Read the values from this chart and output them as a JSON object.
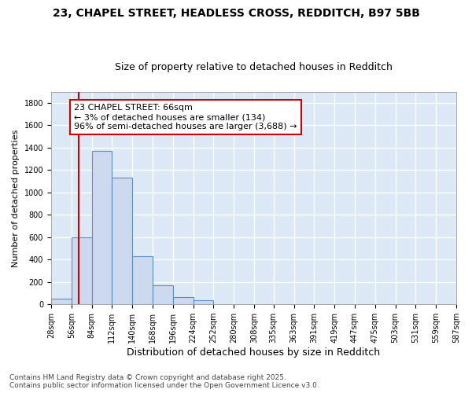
{
  "title1": "23, CHAPEL STREET, HEADLESS CROSS, REDDITCH, B97 5BB",
  "title2": "Size of property relative to detached houses in Redditch",
  "xlabel": "Distribution of detached houses by size in Redditch",
  "ylabel": "Number of detached properties",
  "bin_edges": [
    28,
    56,
    84,
    112,
    140,
    168,
    196,
    224,
    252,
    280,
    308,
    335,
    363,
    391,
    419,
    447,
    475,
    503,
    531,
    559,
    587
  ],
  "bar_heights": [
    50,
    600,
    1370,
    1130,
    430,
    170,
    65,
    35,
    5,
    5,
    5,
    5,
    0,
    0,
    0,
    0,
    0,
    0,
    0,
    0
  ],
  "bar_color": "#ccd9ee",
  "bar_edge_color": "#5b8ec4",
  "vline_x": 66,
  "vline_color": "#cc0000",
  "annotation_text": "23 CHAPEL STREET: 66sqm\n← 3% of detached houses are smaller (134)\n96% of semi-detached houses are larger (3,688) →",
  "annotation_box_color": "#ffffff",
  "annotation_box_edge": "#cc0000",
  "ylim": [
    0,
    1900
  ],
  "yticks": [
    0,
    200,
    400,
    600,
    800,
    1000,
    1200,
    1400,
    1600,
    1800
  ],
  "background_color": "#dce8f5",
  "grid_color": "#ffffff",
  "fig_background": "#ffffff",
  "footer1": "Contains HM Land Registry data © Crown copyright and database right 2025.",
  "footer2": "Contains public sector information licensed under the Open Government Licence v3.0.",
  "title1_fontsize": 10,
  "title2_fontsize": 9,
  "xlabel_fontsize": 9,
  "ylabel_fontsize": 8,
  "tick_fontsize": 7,
  "footer_fontsize": 6.5,
  "annotation_fontsize": 8
}
